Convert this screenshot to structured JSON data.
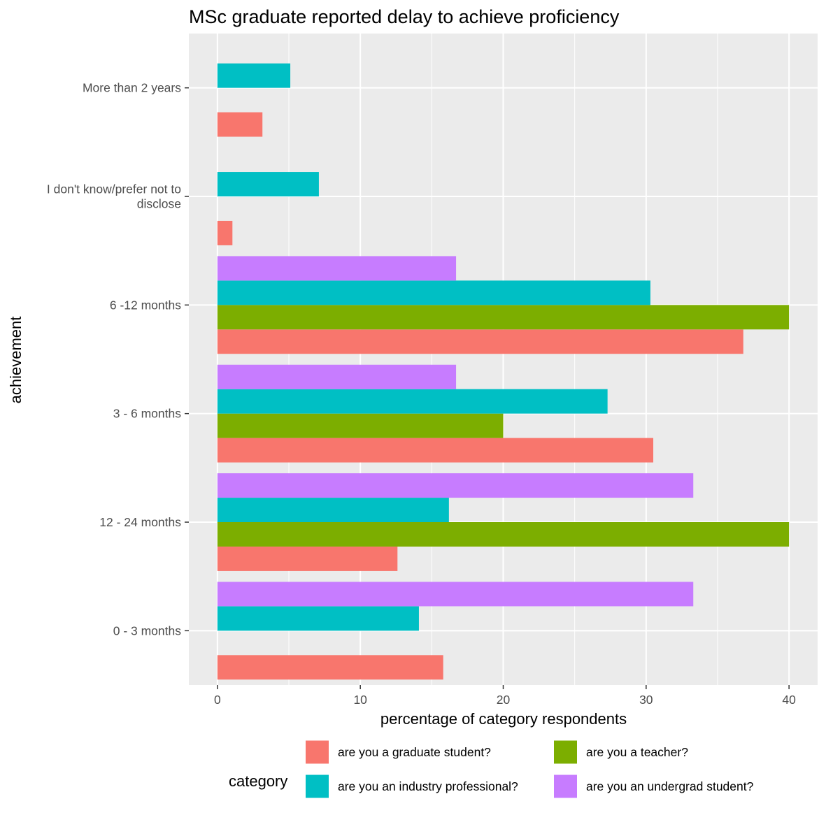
{
  "chart_data": {
    "type": "bar",
    "orientation": "horizontal",
    "title": "MSc graduate reported delay to achieve proficiency",
    "xlabel": "percentage of category respondents",
    "ylabel": "achievement",
    "xlim": [
      -2,
      42
    ],
    "x_ticks": [
      0,
      10,
      20,
      30,
      40
    ],
    "x_tick_labels": [
      "0",
      "10",
      "20",
      "30",
      "40"
    ],
    "grid": true,
    "legend_title": "category",
    "legend_position": "bottom",
    "categories": [
      "0 - 3 months",
      "12 - 24 months",
      "3 - 6 months",
      "6 -12 months",
      "I don't know/prefer not to disclose",
      "More than 2 years"
    ],
    "category_label_lines": [
      [
        "0 - 3 months"
      ],
      [
        "12 - 24 months"
      ],
      [
        "3 - 6 months"
      ],
      [
        "6 -12 months"
      ],
      [
        "I don't know/prefer not to",
        "disclose"
      ],
      [
        "More than 2 years"
      ]
    ],
    "series": [
      {
        "name": "are you a graduate student?",
        "color": "#F8766D",
        "values": [
          15.8,
          12.6,
          30.5,
          36.8,
          1.05,
          3.15
        ]
      },
      {
        "name": "are you a teacher?",
        "color": "#7CAE00",
        "values": [
          0,
          40,
          20,
          40,
          0,
          0
        ]
      },
      {
        "name": "are you an industry professional?",
        "color": "#00BFC4",
        "values": [
          14.1,
          16.2,
          27.3,
          30.3,
          7.1,
          5.1
        ]
      },
      {
        "name": "are you an undergrad student?",
        "color": "#C77CFF",
        "values": [
          33.3,
          33.3,
          16.7,
          16.7,
          0,
          0
        ]
      }
    ],
    "legend_order": [
      0,
      1,
      2,
      3
    ],
    "colors": {
      "panel_background": "#EBEBEB",
      "grid_line": "#FFFFFF",
      "axis_text": "#4D4D4D",
      "tick": "#333333"
    }
  }
}
